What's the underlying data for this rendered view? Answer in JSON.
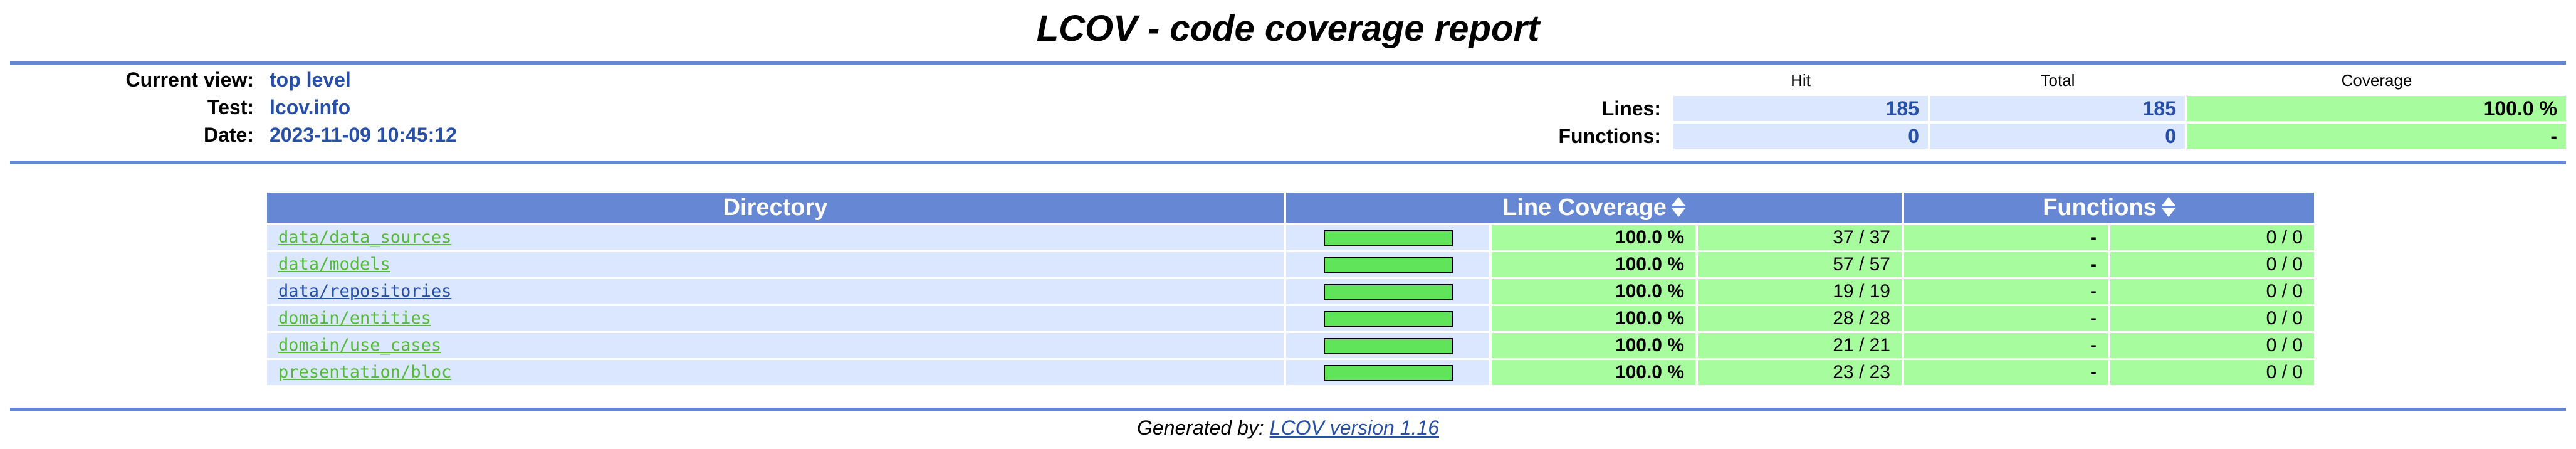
{
  "title": "LCOV - code coverage report",
  "header": {
    "current_view_label": "Current view:",
    "current_view_value": "top level",
    "test_label": "Test:",
    "test_value": "lcov.info",
    "date_label": "Date:",
    "date_value": "2023-11-09 10:45:12"
  },
  "summary": {
    "col_hit": "Hit",
    "col_total": "Total",
    "col_coverage": "Coverage",
    "lines_label": "Lines:",
    "lines_hit": "185",
    "lines_total": "185",
    "lines_coverage": "100.0 %",
    "functions_label": "Functions:",
    "functions_hit": "0",
    "functions_total": "0",
    "functions_coverage": "-"
  },
  "table": {
    "col_directory": "Directory",
    "col_line_coverage": "Line Coverage",
    "col_functions": "Functions",
    "rows": [
      {
        "dir": "data/data_sources",
        "bar_fraction": 1.0,
        "line_pct": "100.0 %",
        "line_count": "37 / 37",
        "func_pct": "-",
        "func_count": "0 / 0"
      },
      {
        "dir": "data/models",
        "bar_fraction": 1.0,
        "line_pct": "100.0 %",
        "line_count": "57 / 57",
        "func_pct": "-",
        "func_count": "0 / 0"
      },
      {
        "dir": "data/repositories",
        "bar_fraction": 1.0,
        "line_pct": "100.0 %",
        "line_count": "19 / 19",
        "func_pct": "-",
        "func_count": "0 / 0"
      },
      {
        "dir": "domain/entities",
        "bar_fraction": 1.0,
        "line_pct": "100.0 %",
        "line_count": "28 / 28",
        "func_pct": "-",
        "func_count": "0 / 0"
      },
      {
        "dir": "domain/use_cases",
        "bar_fraction": 1.0,
        "line_pct": "100.0 %",
        "line_count": "21 / 21",
        "func_pct": "-",
        "func_count": "0 / 0"
      },
      {
        "dir": "presentation/bloc",
        "bar_fraction": 1.0,
        "line_pct": "100.0 %",
        "line_count": "23 / 23",
        "func_pct": "-",
        "func_count": "0 / 0"
      }
    ]
  },
  "footer": {
    "generated_by": "Generated by:",
    "lcov_link": "LCOV version 1.16"
  },
  "colors": {
    "rule": "#6688d4",
    "header_bg": "#6688d4",
    "value_blue": "#284fa8",
    "cell_blue": "#dae7fe",
    "cell_green": "#a7fc9d",
    "bar_green": "#5fe45a",
    "link_green": "#56b93a"
  },
  "icons": {
    "sort": "sort-updown-icon"
  }
}
